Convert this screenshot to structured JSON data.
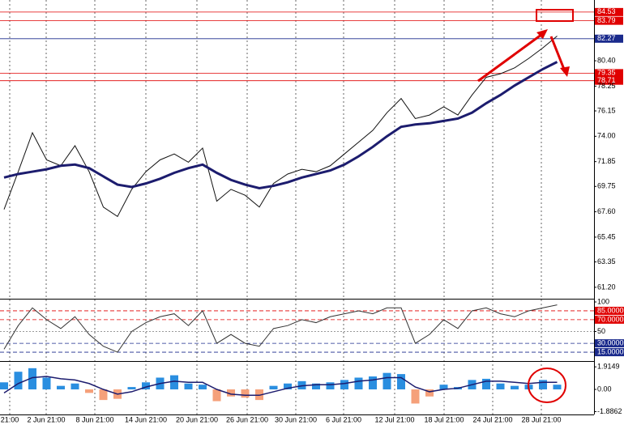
{
  "chart_data": [
    {
      "type": "line",
      "x_labels": [
        "21:00",
        "2 Jun 21:00",
        "8 Jun 21:00",
        "14 Jun 21:00",
        "20 Jun 21:00",
        "26 Jun 21:00",
        "30 Jun 21:00",
        "6 Jul 21:00",
        "12 Jul 21:00",
        "18 Jul 21:00",
        "24 Jul 21:00",
        "28 Jul 21:00"
      ],
      "ylim": [
        60.3,
        85.55
      ],
      "yticks": [
        {
          "value": 61.2,
          "label": "61.20"
        },
        63.35,
        65.45,
        {
          "value": 67.6,
          "label": "67.60"
        },
        69.75,
        71.85,
        {
          "value": 74,
          "label": "74.00"
        },
        76.15,
        78.25,
        {
          "value": 80.4,
          "label": "80.40"
        }
      ],
      "levels": [
        {
          "value": 84.53,
          "color": "#e00000"
        },
        {
          "value": 83.79,
          "color": "#e00000"
        },
        {
          "value": 82.27,
          "color": "#1a2a8c"
        },
        {
          "value": 79.35,
          "color": "#e00000"
        },
        {
          "value": 78.71,
          "color": "#e00000"
        }
      ],
      "series": [
        {
          "color": "#111111",
          "width": 1,
          "values": [
            67.8,
            71.0,
            74.3,
            72.0,
            71.5,
            73.2,
            71.0,
            68.0,
            67.2,
            69.5,
            71.0,
            72.0,
            72.5,
            71.8,
            73.0,
            68.5,
            69.5,
            69.0,
            68.0,
            70.0,
            70.8,
            71.2,
            71.0,
            71.5,
            72.5,
            73.5,
            74.5,
            76.0,
            77.2,
            75.5,
            75.8,
            76.5,
            75.8,
            77.5,
            79.0,
            79.3,
            79.8,
            80.6,
            81.5,
            82.5
          ]
        },
        {
          "color": "#1c1c6e",
          "width": 3,
          "values": [
            70.5,
            70.8,
            71.0,
            71.2,
            71.5,
            71.6,
            71.3,
            70.6,
            69.9,
            69.7,
            70.0,
            70.4,
            70.9,
            71.3,
            71.6,
            70.9,
            70.3,
            69.9,
            69.6,
            69.8,
            70.1,
            70.5,
            70.8,
            71.1,
            71.6,
            72.3,
            73.1,
            74.0,
            74.8,
            75.0,
            75.1,
            75.3,
            75.5,
            76.0,
            76.8,
            77.5,
            78.3,
            79.0,
            79.7,
            80.3
          ]
        }
      ]
    },
    {
      "type": "line",
      "ylim": [
        0,
        100
      ],
      "yticks": [
        100,
        {
          "value": 85,
          "label": "85.0000"
        },
        {
          "value": 70,
          "label": "70.0000"
        },
        50,
        {
          "value": 30,
          "label": "30.0000"
        },
        {
          "value": 15,
          "label": "15.0000"
        }
      ],
      "levels": [
        {
          "value": 85,
          "color": "#e00000"
        },
        {
          "value": 70,
          "color": "#e00000"
        },
        {
          "value": 30,
          "color": "#1a2a8c"
        },
        {
          "value": 15,
          "color": "#1a2a8c"
        }
      ],
      "series": [
        {
          "color": "#333333",
          "width": 1,
          "values": [
            20,
            60,
            90,
            70,
            55,
            75,
            45,
            25,
            15,
            50,
            65,
            75,
            80,
            60,
            85,
            30,
            45,
            30,
            25,
            55,
            60,
            70,
            65,
            75,
            80,
            85,
            80,
            90,
            90,
            30,
            45,
            70,
            55,
            85,
            90,
            80,
            75,
            85,
            90,
            95
          ]
        }
      ]
    },
    {
      "type": "bar",
      "ylim": [
        -2.13,
        2.27
      ],
      "yticks": [
        1.9149,
        {
          "value": 0,
          "label": "0.00"
        },
        -1.8862
      ],
      "color_up": "#2a8ee0",
      "color_down": "#f5a07a",
      "values": [
        0.6,
        1.5,
        1.8,
        1.0,
        0.3,
        0.5,
        -0.3,
        -0.9,
        -0.8,
        0.2,
        0.6,
        1.0,
        1.2,
        0.5,
        0.4,
        -1.0,
        -0.6,
        -0.7,
        -0.9,
        0.3,
        0.5,
        0.7,
        0.5,
        0.6,
        0.8,
        1.0,
        1.1,
        1.4,
        1.3,
        -1.2,
        -0.6,
        0.4,
        0.2,
        0.8,
        0.9,
        0.5,
        0.3,
        0.4,
        0.8,
        0.4
      ],
      "series": [
        {
          "color": "#1c1c6e",
          "width": 1.5,
          "values": [
            -0.3,
            0.5,
            1.0,
            1.1,
            0.9,
            0.8,
            0.5,
            0.0,
            -0.4,
            -0.2,
            0.2,
            0.5,
            0.7,
            0.6,
            0.6,
            0.0,
            -0.4,
            -0.5,
            -0.5,
            -0.2,
            0.1,
            0.3,
            0.4,
            0.4,
            0.5,
            0.7,
            0.8,
            1.0,
            1.0,
            0.2,
            -0.2,
            0.0,
            0.1,
            0.4,
            0.7,
            0.7,
            0.6,
            0.5,
            0.6,
            0.6
          ]
        }
      ]
    }
  ]
}
